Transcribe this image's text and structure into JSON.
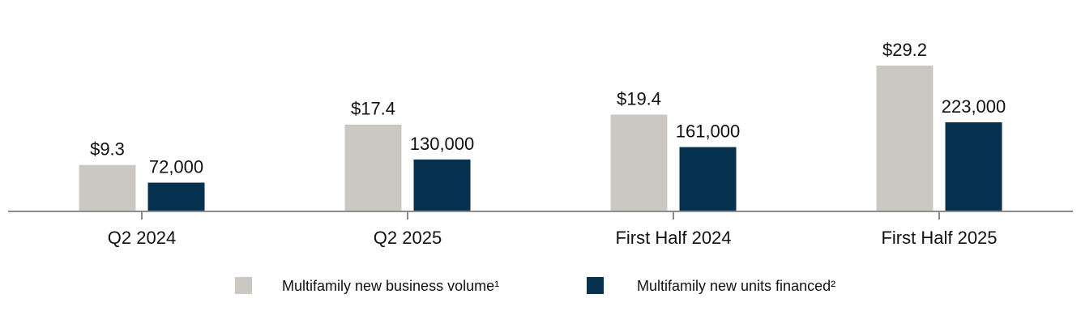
{
  "chart_data": {
    "type": "bar",
    "categories": [
      "Q2 2024",
      "Q2 2025",
      "First Half 2024",
      "First Half 2025"
    ],
    "series": [
      {
        "name": "Multifamily new business volume¹",
        "values": [
          9.3,
          17.4,
          19.4,
          29.2
        ],
        "labels": [
          "$9.3",
          "$17.4",
          "$19.4",
          "$29.2"
        ],
        "color": "#cbc8c3"
      },
      {
        "name": "Multifamily new units financed²",
        "values": [
          72000,
          130000,
          161000,
          223000
        ],
        "labels": [
          "72,000",
          "130,000",
          "161,000",
          "223,000"
        ],
        "color": "#06324f"
      }
    ],
    "axis_color": "#8c8c8c",
    "grid": false,
    "legend_position": "bottom"
  }
}
